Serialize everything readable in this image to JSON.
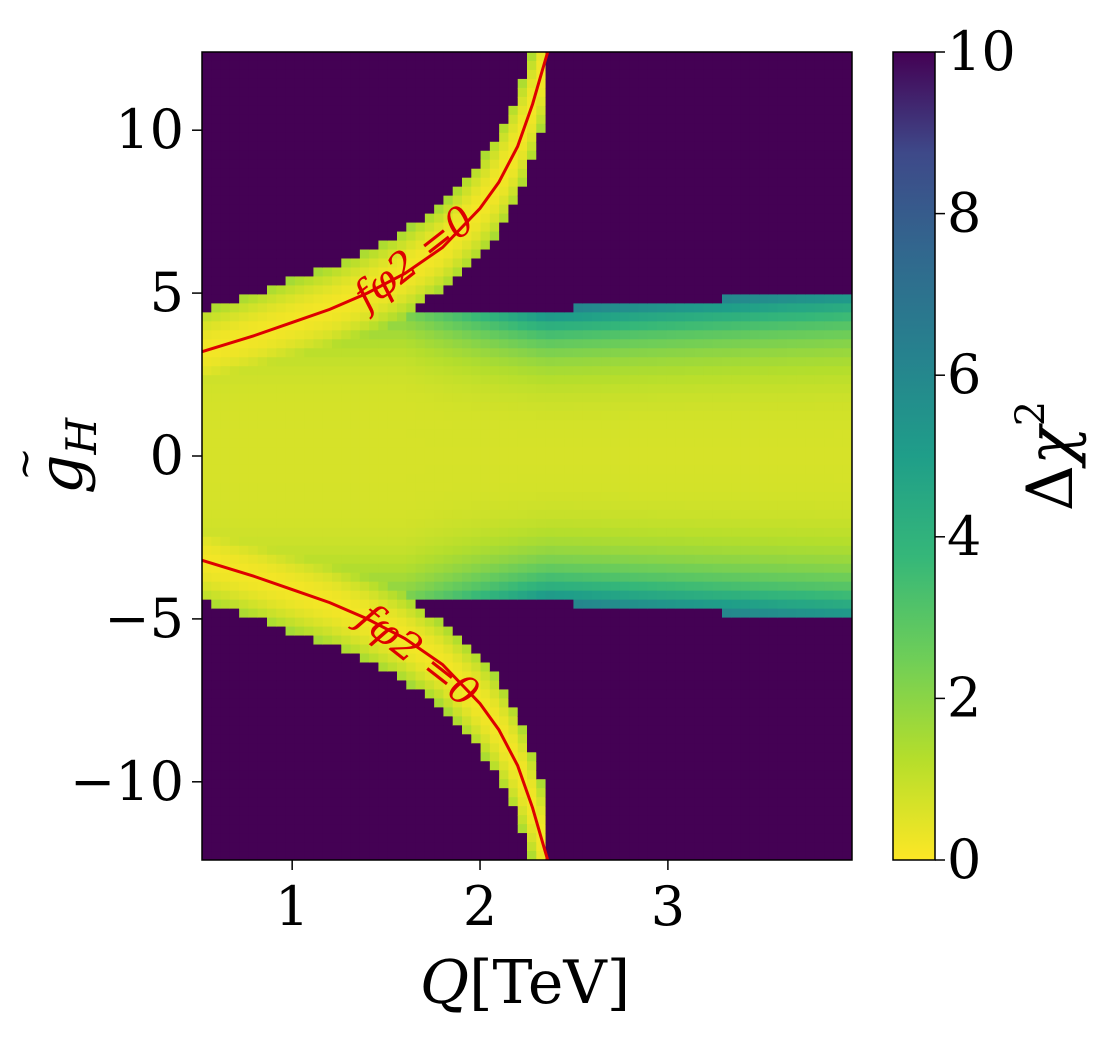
{
  "chart_data": {
    "type": "heatmap",
    "title": "",
    "xlabel": "Q[TeV]",
    "ylabel": "g̃H",
    "colorbar_label": "Δχ²",
    "xlim": [
      0.52,
      3.98
    ],
    "ylim": [
      -12.4,
      12.4
    ],
    "x_ticks": [
      1,
      2,
      3
    ],
    "x_tick_labels": [
      "1",
      "2",
      "3"
    ],
    "y_ticks": [
      10,
      5,
      0,
      -5,
      -10
    ],
    "y_tick_labels": [
      "10",
      "5",
      "0",
      "−5",
      "−10"
    ],
    "colorbar_ticks": [
      10,
      8,
      6,
      4,
      2,
      0
    ],
    "colorbar_tick_labels": [
      "10",
      "8",
      "6",
      "4",
      "2",
      "0"
    ],
    "color_range": [
      0,
      10
    ],
    "colormap": "viridis_r",
    "grid": false,
    "grid_cells": {
      "nx": 70,
      "ny": 90
    },
    "model": {
      "q_singular": 2.36,
      "core_halfwidth_gH": 4.5,
      "band_halfwidth_gH": 1.3,
      "saturated_value": 10
    },
    "contours": [
      {
        "label": "fφ2 =0",
        "color": "#dd0000",
        "points": [
          [
            0.52,
            3.2
          ],
          [
            0.8,
            3.7
          ],
          [
            1.0,
            4.1
          ],
          [
            1.2,
            4.5
          ],
          [
            1.4,
            5.0
          ],
          [
            1.6,
            5.6
          ],
          [
            1.8,
            6.4
          ],
          [
            2.0,
            7.6
          ],
          [
            2.1,
            8.4
          ],
          [
            2.2,
            9.5
          ],
          [
            2.28,
            10.8
          ],
          [
            2.33,
            11.8
          ],
          [
            2.36,
            12.4
          ]
        ]
      },
      {
        "label": "fφ2 =0",
        "color": "#dd0000",
        "points": [
          [
            0.52,
            -3.2
          ],
          [
            0.8,
            -3.7
          ],
          [
            1.0,
            -4.1
          ],
          [
            1.2,
            -4.5
          ],
          [
            1.4,
            -5.0
          ],
          [
            1.6,
            -5.6
          ],
          [
            1.8,
            -6.4
          ],
          [
            2.0,
            -7.6
          ],
          [
            2.1,
            -8.4
          ],
          [
            2.2,
            -9.5
          ],
          [
            2.28,
            -10.8
          ],
          [
            2.33,
            -11.8
          ],
          [
            2.36,
            -12.4
          ]
        ]
      }
    ]
  }
}
